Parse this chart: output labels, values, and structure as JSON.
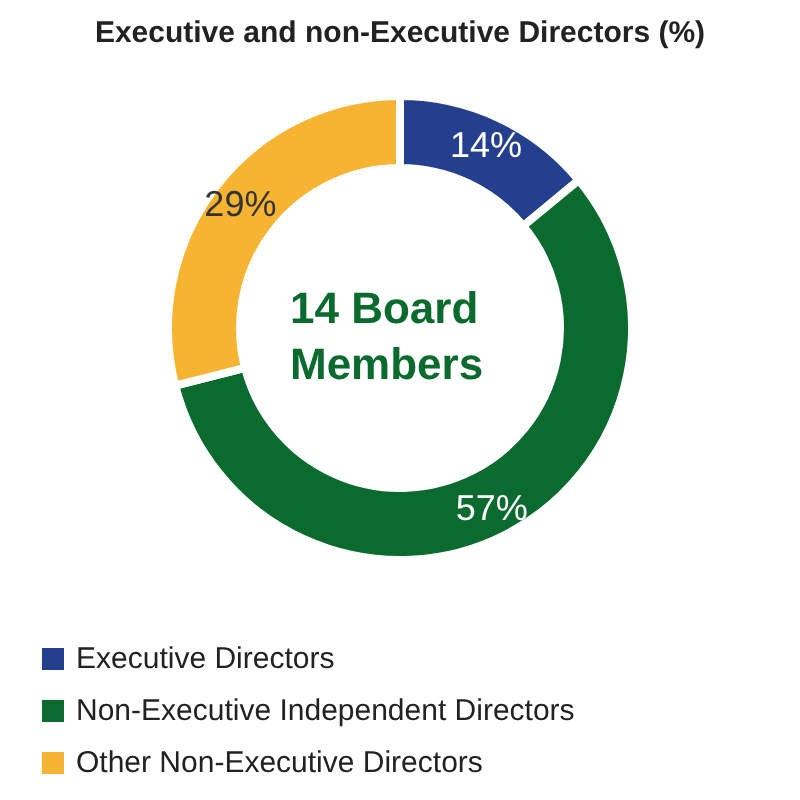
{
  "chart_data": {
    "type": "donut",
    "title": "Executive and non-Executive Directors (%)",
    "categories": [
      "Executive Directors",
      "Non-Executive Independent Directors",
      "Other Non-Executive Directors"
    ],
    "values": [
      14,
      57,
      29
    ],
    "colors": [
      "#233f8e",
      "#0b6a2e",
      "#f7b332"
    ],
    "value_labels": [
      "14%",
      "57%",
      "29%"
    ],
    "annotations": [
      "14 Board Members"
    ],
    "legend": "bottom left"
  }
}
